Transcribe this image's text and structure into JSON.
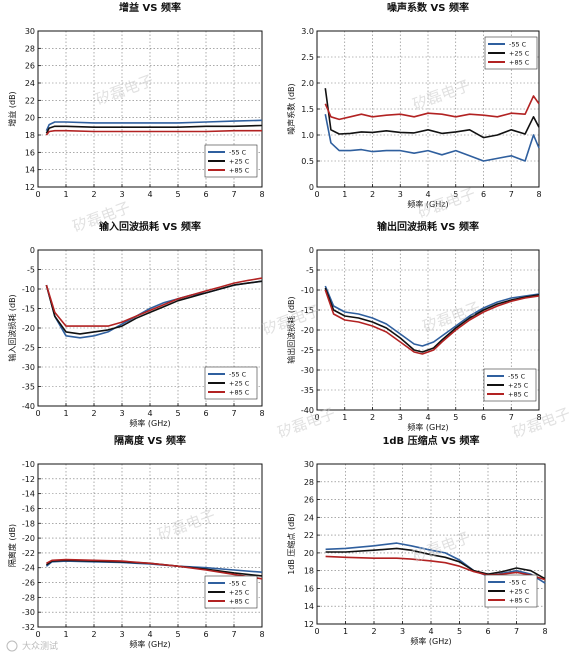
{
  "colors": {
    "m55": "#2f5f9e",
    "p25": "#111111",
    "p85": "#b22222"
  },
  "legend_labels": [
    "-55 C",
    "+25 C",
    "+85 C"
  ],
  "watermarks": [
    "矽磊电子"
  ],
  "footer": "大众测试",
  "chart_data": [
    {
      "type": "line",
      "title": "增益 VS 频率",
      "xlabel": "",
      "ylabel": "增益 (dB)",
      "xlim": [
        0,
        8
      ],
      "ylim": [
        12,
        30
      ],
      "xticks": [
        0,
        1,
        2,
        3,
        4,
        5,
        6,
        7,
        8
      ],
      "yticks": [
        12,
        14,
        16,
        18,
        20,
        22,
        24,
        26,
        28,
        30
      ],
      "legend_position": "bottom-right",
      "grid": true,
      "series": [
        {
          "name": "-55 C",
          "color_key": "m55",
          "x": [
            0.3,
            0.4,
            0.6,
            1,
            2,
            3,
            4,
            5,
            6,
            7,
            8
          ],
          "y": [
            18.5,
            19.2,
            19.5,
            19.5,
            19.4,
            19.4,
            19.4,
            19.4,
            19.5,
            19.6,
            19.7
          ]
        },
        {
          "name": "+25 C",
          "color_key": "p25",
          "x": [
            0.3,
            0.4,
            0.6,
            1,
            2,
            3,
            4,
            5,
            6,
            7,
            8
          ],
          "y": [
            18.2,
            18.8,
            19.0,
            19.0,
            18.9,
            18.9,
            18.9,
            18.9,
            19.0,
            19.0,
            19.1
          ]
        },
        {
          "name": "+85 C",
          "color_key": "p85",
          "x": [
            0.3,
            0.4,
            0.6,
            1,
            2,
            3,
            4,
            5,
            6,
            7,
            8
          ],
          "y": [
            18.0,
            18.4,
            18.5,
            18.5,
            18.4,
            18.4,
            18.4,
            18.4,
            18.4,
            18.5,
            18.5
          ]
        }
      ]
    },
    {
      "type": "line",
      "title": "噪声系数 VS 频率",
      "xlabel": "频率 (GHz)",
      "ylabel": "噪声系数 (dB)",
      "xlim": [
        0,
        8
      ],
      "ylim": [
        0,
        3
      ],
      "xticks": [
        0,
        1,
        2,
        3,
        4,
        5,
        6,
        7,
        8
      ],
      "yticks": [
        0,
        0.5,
        1.0,
        1.5,
        2.0,
        2.5,
        3.0
      ],
      "ytick_labels": [
        "0",
        "0.5",
        "1.0",
        "1.5",
        "2.0",
        "2.5",
        "3.0"
      ],
      "legend_position": "top-right",
      "grid": true,
      "series": [
        {
          "name": "-55 C",
          "color_key": "m55",
          "x": [
            0.3,
            0.5,
            0.8,
            1.2,
            1.6,
            2,
            2.5,
            3,
            3.5,
            4,
            4.5,
            5,
            5.5,
            6,
            6.5,
            7,
            7.5,
            7.8,
            8
          ],
          "y": [
            1.4,
            0.85,
            0.7,
            0.7,
            0.72,
            0.68,
            0.7,
            0.7,
            0.65,
            0.7,
            0.62,
            0.7,
            0.6,
            0.5,
            0.55,
            0.6,
            0.5,
            1.0,
            0.75
          ]
        },
        {
          "name": "+25 C",
          "color_key": "p25",
          "x": [
            0.3,
            0.5,
            0.8,
            1.2,
            1.6,
            2,
            2.5,
            3,
            3.5,
            4,
            4.5,
            5,
            5.5,
            6,
            6.5,
            7,
            7.5,
            7.8,
            8
          ],
          "y": [
            1.9,
            1.1,
            1.02,
            1.03,
            1.06,
            1.05,
            1.08,
            1.05,
            1.04,
            1.1,
            1.03,
            1.06,
            1.1,
            0.95,
            1.0,
            1.1,
            1.02,
            1.35,
            1.15
          ]
        },
        {
          "name": "+85 C",
          "color_key": "p85",
          "x": [
            0.3,
            0.5,
            0.8,
            1.2,
            1.6,
            2,
            2.5,
            3,
            3.5,
            4,
            4.5,
            5,
            5.5,
            6,
            6.5,
            7,
            7.5,
            7.8,
            8
          ],
          "y": [
            1.6,
            1.35,
            1.3,
            1.35,
            1.4,
            1.35,
            1.38,
            1.4,
            1.35,
            1.42,
            1.4,
            1.35,
            1.4,
            1.38,
            1.35,
            1.42,
            1.4,
            1.75,
            1.6
          ]
        }
      ]
    },
    {
      "type": "line",
      "title": "输入回波损耗 VS 频率",
      "xlabel": "频率 (GHz)",
      "ylabel": "输入回波损耗 (dB)",
      "xlim": [
        0,
        8
      ],
      "ylim": [
        -40,
        0
      ],
      "xticks": [
        0,
        1,
        2,
        3,
        4,
        5,
        6,
        7,
        8
      ],
      "yticks": [
        -40,
        -35,
        -30,
        -25,
        -20,
        -15,
        -10,
        -5,
        0
      ],
      "legend_position": "bottom-right",
      "grid": true,
      "series": [
        {
          "name": "-55 C",
          "color_key": "m55",
          "x": [
            0.3,
            0.6,
            1,
            1.5,
            2,
            2.5,
            3,
            3.5,
            4,
            4.5,
            5,
            5.5,
            6,
            6.5,
            7,
            7.5,
            8
          ],
          "y": [
            -9,
            -17,
            -22,
            -22.5,
            -22,
            -21,
            -19,
            -17,
            -15,
            -13.5,
            -12.5,
            -11.5,
            -11,
            -10,
            -9,
            -8.5,
            -8
          ]
        },
        {
          "name": "+25 C",
          "color_key": "p25",
          "x": [
            0.3,
            0.6,
            1,
            1.5,
            2,
            2.5,
            3,
            3.5,
            4,
            4.5,
            5,
            5.5,
            6,
            6.5,
            7,
            7.5,
            8
          ],
          "y": [
            -9,
            -17,
            -21,
            -21.5,
            -21,
            -20.5,
            -19.5,
            -17.5,
            -16,
            -14.5,
            -13,
            -12,
            -11,
            -10,
            -9,
            -8.5,
            -8
          ]
        },
        {
          "name": "+85 C",
          "color_key": "p85",
          "x": [
            0.3,
            0.6,
            1,
            1.5,
            2,
            2.5,
            3,
            3.5,
            4,
            4.5,
            5,
            5.5,
            6,
            6.5,
            7,
            7.5,
            8
          ],
          "y": [
            -9,
            -16,
            -19.5,
            -19.5,
            -19.5,
            -19.5,
            -18.5,
            -17,
            -15.5,
            -14,
            -12.5,
            -11.5,
            -10.5,
            -9.5,
            -8.5,
            -7.8,
            -7.2
          ]
        }
      ]
    },
    {
      "type": "line",
      "title": "输出回波损耗 VS 频率",
      "xlabel": "频率 (GHz)",
      "ylabel": "输出回波损耗 (dB)",
      "xlim": [
        0,
        8
      ],
      "ylim": [
        -40,
        0
      ],
      "xticks": [
        0,
        1,
        2,
        3,
        4,
        5,
        6,
        7,
        8
      ],
      "yticks": [
        -40,
        -35,
        -30,
        -25,
        -20,
        -15,
        -10,
        -5,
        0
      ],
      "legend_position": "bottom-right",
      "grid": true,
      "series": [
        {
          "name": "-55 C",
          "color_key": "m55",
          "x": [
            0.3,
            0.6,
            1,
            1.5,
            2,
            2.5,
            3,
            3.5,
            3.8,
            4.2,
            4.5,
            5,
            5.5,
            6,
            6.5,
            7,
            7.5,
            8
          ],
          "y": [
            -9,
            -14,
            -15.5,
            -16,
            -17,
            -18.5,
            -21,
            -23.5,
            -24,
            -23,
            -21.5,
            -19,
            -16.5,
            -14.5,
            -13,
            -12,
            -11.5,
            -11
          ]
        },
        {
          "name": "+25 C",
          "color_key": "p25",
          "x": [
            0.3,
            0.6,
            1,
            1.5,
            2,
            2.5,
            3,
            3.5,
            3.8,
            4.2,
            4.5,
            5,
            5.5,
            6,
            6.5,
            7,
            7.5,
            8
          ],
          "y": [
            -9.5,
            -15,
            -16.5,
            -17,
            -18,
            -19.5,
            -22,
            -25,
            -25.5,
            -24.5,
            -22.5,
            -19.5,
            -17,
            -15,
            -13.5,
            -12.5,
            -11.8,
            -11.2
          ]
        },
        {
          "name": "+85 C",
          "color_key": "p85",
          "x": [
            0.3,
            0.6,
            1,
            1.5,
            2,
            2.5,
            3,
            3.5,
            3.8,
            4.2,
            4.5,
            5,
            5.5,
            6,
            6.5,
            7,
            7.5,
            8
          ],
          "y": [
            -10,
            -16,
            -17.5,
            -18,
            -19,
            -20.5,
            -23,
            -25.5,
            -26,
            -25,
            -23,
            -20,
            -17.5,
            -15.5,
            -14,
            -12.8,
            -12,
            -11.5
          ]
        }
      ]
    },
    {
      "type": "line",
      "title": "隔离度 VS 频率",
      "xlabel": "频率 (GHz)",
      "ylabel": "隔离度 (dB)",
      "xlim": [
        0,
        8
      ],
      "ylim": [
        -32,
        -10
      ],
      "xticks": [
        0,
        1,
        2,
        3,
        4,
        5,
        6,
        7,
        8
      ],
      "yticks": [
        -32,
        -30,
        -28,
        -26,
        -24,
        -22,
        -20,
        -18,
        -16,
        -14,
        -12,
        -10
      ],
      "legend_position": "bottom-right",
      "grid": true,
      "series": [
        {
          "name": "-55 C",
          "color_key": "m55",
          "x": [
            0.3,
            0.5,
            1,
            2,
            3,
            4,
            5,
            6,
            7,
            8
          ],
          "y": [
            -23.8,
            -23.2,
            -23.1,
            -23.2,
            -23.3,
            -23.5,
            -23.8,
            -24.0,
            -24.3,
            -24.6
          ]
        },
        {
          "name": "+25 C",
          "color_key": "p25",
          "x": [
            0.3,
            0.5,
            1,
            2,
            3,
            4,
            5,
            6,
            7,
            8
          ],
          "y": [
            -23.6,
            -23.1,
            -23.0,
            -23.1,
            -23.2,
            -23.4,
            -23.8,
            -24.2,
            -24.7,
            -25.1
          ]
        },
        {
          "name": "+85 C",
          "color_key": "p85",
          "x": [
            0.3,
            0.5,
            1,
            2,
            3,
            4,
            5,
            6,
            7,
            8
          ],
          "y": [
            -23.4,
            -23.0,
            -22.9,
            -23.0,
            -23.1,
            -23.4,
            -23.8,
            -24.3,
            -24.9,
            -25.5
          ]
        }
      ]
    },
    {
      "type": "line",
      "title": "1dB 压缩点 VS 频率",
      "xlabel": "频率 (GHz)",
      "ylabel": "1dB 压缩点 (dB)",
      "xlim": [
        0,
        8
      ],
      "ylim": [
        12,
        30
      ],
      "xticks": [
        0,
        1,
        2,
        3,
        4,
        5,
        6,
        7,
        8
      ],
      "yticks": [
        12,
        14,
        16,
        18,
        20,
        22,
        24,
        26,
        28,
        30
      ],
      "legend_position": "bottom-right",
      "grid": true,
      "series": [
        {
          "name": "-55 C",
          "color_key": "m55",
          "x": [
            0.3,
            1,
            2,
            2.8,
            3.3,
            4,
            4.5,
            5,
            5.5,
            6,
            6.5,
            7,
            7.5,
            8
          ],
          "y": [
            20.4,
            20.5,
            20.8,
            21.1,
            20.8,
            20.3,
            20.0,
            19.2,
            18.0,
            17.4,
            17.7,
            18.0,
            17.6,
            16.6
          ]
        },
        {
          "name": "+25 C",
          "color_key": "p25",
          "x": [
            0.3,
            1,
            2,
            2.8,
            3.3,
            4,
            4.5,
            5,
            5.5,
            6,
            6.5,
            7,
            7.5,
            8
          ],
          "y": [
            20.1,
            20.1,
            20.3,
            20.5,
            20.3,
            19.8,
            19.5,
            19.0,
            18.0,
            17.6,
            17.9,
            18.3,
            18.0,
            17.1
          ]
        },
        {
          "name": "+85 C",
          "color_key": "p85",
          "x": [
            0.3,
            1,
            2,
            2.8,
            3.3,
            4,
            4.5,
            5,
            5.5,
            6,
            6.5,
            7,
            7.5,
            8
          ],
          "y": [
            19.6,
            19.5,
            19.4,
            19.4,
            19.3,
            19.1,
            18.9,
            18.5,
            17.9,
            17.5,
            17.6,
            17.8,
            17.5,
            17.0
          ]
        }
      ]
    }
  ]
}
